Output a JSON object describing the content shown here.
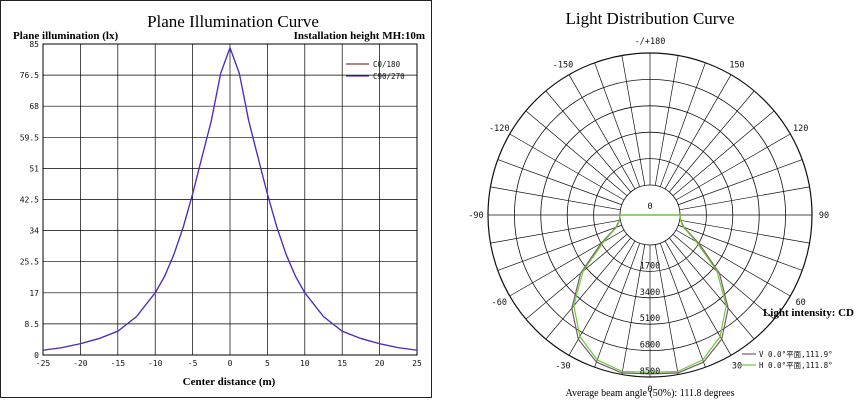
{
  "chart_data": [
    {
      "type": "line",
      "title": "Plane Illumination Curve",
      "ylabel": "Plane illumination (lx)",
      "xlabel": "Center distance (m)",
      "annotation": "Installation height MH:10m",
      "xlim": [
        -25,
        25
      ],
      "ylim": [
        0,
        85
      ],
      "x_ticks": [
        "-25",
        "-20",
        "-15",
        "-10",
        "-5",
        "0",
        "5",
        "10",
        "15",
        "20",
        "25"
      ],
      "y_ticks": [
        "0",
        "8.5",
        "17",
        "25.5",
        "34",
        "42.5",
        "51",
        "59.5",
        "68",
        "76.5",
        "85"
      ],
      "grid": true,
      "legend_position": "top-right",
      "series": [
        {
          "name": "C0/180",
          "color": "#8a3a3a",
          "x": [
            -25,
            -22.5,
            -20,
            -17.5,
            -15,
            -12.5,
            -10,
            -8.75,
            -7.5,
            -6.25,
            -5,
            -3.75,
            -2.5,
            -1.25,
            0,
            1.25,
            2.5,
            3.75,
            5,
            6.25,
            7.5,
            8.75,
            10,
            12.5,
            15,
            17.5,
            20,
            22.5,
            25
          ],
          "values": [
            1.3,
            2.0,
            3.1,
            4.5,
            6.5,
            10.5,
            17,
            21.5,
            27.5,
            35,
            44,
            54,
            64,
            77,
            84,
            77,
            64,
            54,
            44,
            35,
            27.5,
            21.5,
            17,
            10.5,
            6.5,
            4.5,
            3.1,
            2.0,
            1.3
          ]
        },
        {
          "name": "C90/270",
          "color": "#4a2ad0",
          "x": [
            -25,
            -22.5,
            -20,
            -17.5,
            -15,
            -12.5,
            -10,
            -8.75,
            -7.5,
            -6.25,
            -5,
            -3.75,
            -2.5,
            -1.25,
            0,
            1.25,
            2.5,
            3.75,
            5,
            6.25,
            7.5,
            8.75,
            10,
            12.5,
            15,
            17.5,
            20,
            22.5,
            25
          ],
          "values": [
            1.3,
            2.0,
            3.1,
            4.5,
            6.5,
            10.5,
            17,
            21.5,
            27.5,
            35,
            44,
            54,
            64,
            77,
            84,
            77,
            64,
            54,
            44,
            35,
            27.5,
            21.5,
            17,
            10.5,
            6.5,
            4.5,
            3.1,
            2.0,
            1.3
          ]
        }
      ]
    },
    {
      "type": "polar",
      "title": "Light Distribution Curve",
      "rlim": [
        0,
        8500
      ],
      "ring_labels": [
        "0",
        "1700",
        "3400",
        "5100",
        "6800",
        "8500"
      ],
      "angle_labels": [
        "-/+180",
        "150",
        "120",
        "90",
        "60",
        "30",
        "0",
        "-30",
        "-60",
        "-90",
        "-120",
        "-150"
      ],
      "intensity_label": "Light intensity: CD",
      "footer": "Average beam angle (50%): 111.8 degrees",
      "legend_position": "bottom-right",
      "series": [
        {
          "name": "V 0.0°平面,111.9°",
          "color": "#7a5a6a",
          "theta": [
            -90,
            -80,
            -70,
            -60,
            -50,
            -40,
            -30,
            -20,
            -10,
            0,
            10,
            20,
            30,
            40,
            50,
            60,
            70,
            80,
            90
          ],
          "values": [
            0,
            80,
            400,
            1700,
            3900,
            5900,
            7300,
            8150,
            8400,
            8300,
            8400,
            8150,
            7300,
            5900,
            3900,
            1700,
            400,
            80,
            0
          ]
        },
        {
          "name": "H 0.0°平面,111.8°",
          "color": "#6ec83a",
          "theta": [
            -90,
            -80,
            -70,
            -60,
            -50,
            -40,
            -30,
            -20,
            -10,
            0,
            10,
            20,
            30,
            40,
            50,
            60,
            70,
            80,
            90
          ],
          "values": [
            0,
            60,
            350,
            1500,
            3700,
            5700,
            7100,
            8000,
            8300,
            8200,
            8300,
            8000,
            7100,
            5700,
            3700,
            1500,
            350,
            60,
            0
          ]
        }
      ]
    }
  ]
}
